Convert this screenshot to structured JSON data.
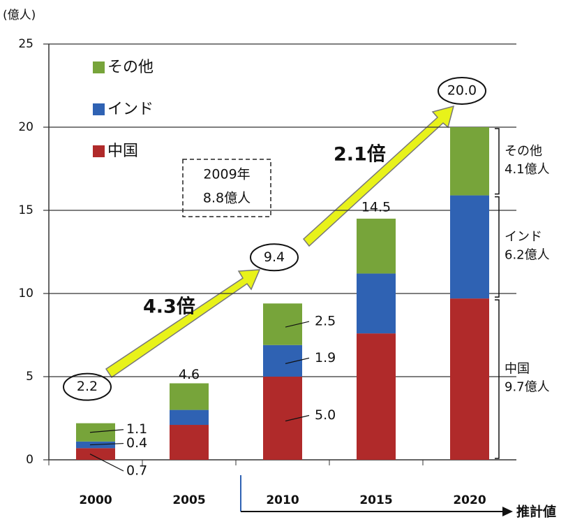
{
  "chart_data": {
    "type": "stacked_bar",
    "y_label": "(億人)",
    "categories": [
      "2000",
      "2005",
      "2010",
      "2015",
      "2020"
    ],
    "series": [
      {
        "name": "中国",
        "color": "#b02a2a",
        "values": [
          0.7,
          2.1,
          5.0,
          7.6,
          9.7
        ],
        "value_labels": [
          "0.7",
          null,
          "5.0",
          null,
          "9.7億人"
        ]
      },
      {
        "name": "インド",
        "color": "#2f62b3",
        "values": [
          0.4,
          0.9,
          1.9,
          3.6,
          6.2
        ],
        "value_labels": [
          "0.4",
          null,
          "1.9",
          null,
          "6.2億人"
        ]
      },
      {
        "name": "その他",
        "color": "#77a43a",
        "values": [
          1.1,
          1.6,
          2.5,
          3.3,
          4.1
        ],
        "value_labels": [
          "1.1",
          null,
          "2.5",
          null,
          "4.1億人"
        ]
      }
    ],
    "totals": [
      2.2,
      4.6,
      9.4,
      14.5,
      20.0
    ],
    "total_labels": [
      "2.2",
      "4.6",
      "9.4",
      "14.5",
      "20.0"
    ],
    "ylim": [
      0,
      25
    ],
    "yticks": [
      0,
      5,
      10,
      15,
      20,
      25
    ],
    "grid": true,
    "legend": "upper left",
    "annotations": {
      "growth_1": "4.3倍",
      "growth_2": "2.1倍",
      "box_year": "2009年",
      "box_value": "8.8億人",
      "forecast": "推計値"
    }
  }
}
